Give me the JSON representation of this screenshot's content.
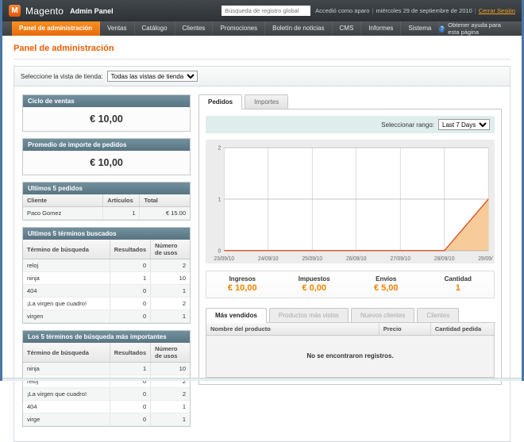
{
  "header": {
    "brand": "Magento",
    "brand_suffix": "Admin Panel",
    "search_placeholder": "Búsqueda de registro global",
    "logged_in_as": "Accedió como aparo",
    "date": "miércoles 29 de septiembre de 2010",
    "logout_label": "Cerrar Sesión"
  },
  "nav": {
    "items": [
      {
        "label": "Panel de administración",
        "active": true
      },
      {
        "label": "Ventas",
        "active": false
      },
      {
        "label": "Catálogo",
        "active": false
      },
      {
        "label": "Clientes",
        "active": false
      },
      {
        "label": "Promociones",
        "active": false
      },
      {
        "label": "Boletín de noticias",
        "active": false
      },
      {
        "label": "CMS",
        "active": false
      },
      {
        "label": "Informes",
        "active": false
      },
      {
        "label": "Sistema",
        "active": false
      }
    ],
    "help_label": "Obtener ayuda para esta página"
  },
  "page": {
    "title": "Panel de administración",
    "store_switcher_label": "Seleccione la vista de tienda:",
    "store_switcher_value": "Todas las vistas de tienda"
  },
  "left": {
    "lifetime": {
      "title": "Ciclo de ventas",
      "value": "€ 10,00"
    },
    "average": {
      "title": "Promedio de importe de pedidos",
      "value": "€ 10,00"
    },
    "last_orders": {
      "title": "Ultimos 5 pedidos",
      "headers": [
        "Cliente",
        "Artículos",
        "Total"
      ],
      "rows": [
        [
          "Paco Gomez",
          "1",
          "€ 15.00"
        ]
      ]
    },
    "last_terms": {
      "title": "Ultimos 5 términos buscados",
      "headers": [
        "Término de búsqueda",
        "Resultados",
        "Número de usos"
      ],
      "rows": [
        [
          "reloj",
          "0",
          "2"
        ],
        [
          "ninja",
          "1",
          "10"
        ],
        [
          "404",
          "0",
          "1"
        ],
        [
          "¡La virgen que cuadro!",
          "0",
          "2"
        ],
        [
          "virgen",
          "0",
          "1"
        ]
      ]
    },
    "top_terms": {
      "title": "Los 5 términos de búsqueda más importantes",
      "headers": [
        "Término de búsqueda",
        "Resultados",
        "Número de usos"
      ],
      "rows": [
        [
          "ninja",
          "1",
          "10"
        ],
        [
          "reloj",
          "0",
          "2"
        ],
        [
          "¡La virgen que cuadro!",
          "0",
          "2"
        ],
        [
          "404",
          "0",
          "1"
        ],
        [
          "virge",
          "0",
          "1"
        ]
      ]
    }
  },
  "right": {
    "tabs": [
      {
        "label": "Pedidos",
        "active": true
      },
      {
        "label": "Importes",
        "active": false
      }
    ],
    "range_label": "Seleccionar rango:",
    "range_value": "Last 7 Days",
    "stats": [
      {
        "label": "Ingresos",
        "value": "€ 10,00"
      },
      {
        "label": "Impuestos",
        "value": "€ 0,00"
      },
      {
        "label": "Envíos",
        "value": "€ 5,00"
      },
      {
        "label": "Cantidad",
        "value": "1"
      }
    ],
    "bottom_tabs": [
      {
        "label": "Más vendidos",
        "active": true
      },
      {
        "label": "Productos más vistos",
        "active": false
      },
      {
        "label": "Nuevos clientes",
        "active": false
      },
      {
        "label": "Clientes",
        "active": false
      }
    ],
    "grid": {
      "headers": [
        "Nombre del producto",
        "Precio",
        "Cantidad pedida"
      ],
      "empty_message": "No se encontraron registros."
    }
  },
  "colors": {
    "accent_orange": "#eb5e00",
    "nav_active": "#f18200",
    "box_header": "#5e7987",
    "chart_fill": "#f6c68f",
    "chart_line": "#d9511e"
  },
  "chart_data": {
    "type": "area",
    "title": "Pedidos",
    "x": [
      "23/09/10",
      "24/09/10",
      "25/09/10",
      "26/09/10",
      "27/09/10",
      "28/09/10",
      "29/09/10"
    ],
    "series": [
      {
        "name": "Pedidos",
        "values": [
          0,
          0,
          0,
          0,
          0,
          0,
          1
        ]
      }
    ],
    "ylim": [
      0,
      2
    ],
    "yticks": [
      0,
      1,
      2
    ],
    "grid": true,
    "legend": "none",
    "fill_color": "#f6c68f",
    "line_color": "#d9511e"
  }
}
